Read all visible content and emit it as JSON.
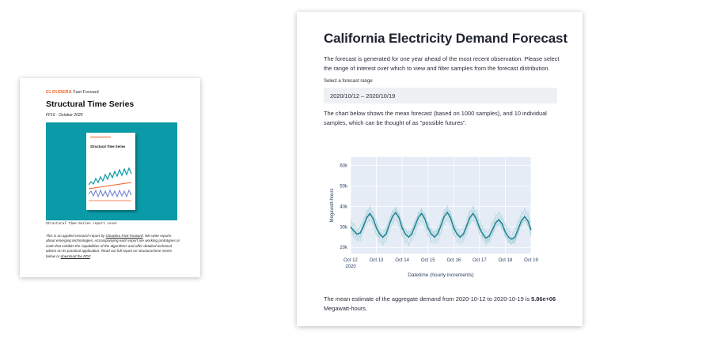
{
  "report": {
    "brand_name": "CLOUDERA",
    "brand_sub": "Fast Forward",
    "title": "Structural Time Series",
    "subtitle": "FF16 · October 2020",
    "cover_title": "Structural Time Series",
    "cover_caption": "Structural Time-Series report cover",
    "intro_text_1": "This is an applied research report by ",
    "intro_link": "Cloudera Fast Forward",
    "intro_text_2": ". We write reports about emerging technologies. Accompanying each report are working prototypes or code that exhibits the capabilities of the algorithms and offer detailed technical advice on its practical application. Read our full report on structural time series below or ",
    "download_link": "download the PDF",
    "intro_text_3": "."
  },
  "app": {
    "title": "California Electricity Demand Forecast",
    "description": "The forecast is generated for one year ahead of the most recent observation. Please select the range of interest over which to view and filter samples from the forecast distribution.",
    "range_label": "Select a forecast range",
    "range_value": "2020/10/12 – 2020/10/19",
    "chart_description": "The chart below shows the mean forecast (based on 1000 samples), and 10 individual samples, which can be thought of as \"possible futures\".",
    "mean_text_prefix": "The mean estimate of the aggregate demand from 2020-10-12 to 2020-10-19 is ",
    "mean_value": "5.86e+06",
    "mean_text_suffix": " Megawatt-hours."
  },
  "colors": {
    "accent_orange": "#f25c20",
    "cover_teal": "#0b9aa7",
    "mean_line": "#1d7e8c",
    "samples": "#9fcfd8",
    "plot_bg": "#e5ecf6",
    "axis_text": "#2a3f5f"
  },
  "chart_data": {
    "type": "line",
    "xlabel": "Datetime (hourly increments)",
    "ylabel": "Megawatt-hours",
    "x_ticks": [
      "Oct 12",
      "Oct 13",
      "Oct 14",
      "Oct 15",
      "Oct 16",
      "Oct 17",
      "Oct 18",
      "Oct 19"
    ],
    "x_tick_sub": "2020",
    "y_ticks": [
      "20k",
      "30k",
      "40k",
      "50k",
      "60k"
    ],
    "y_tick_values": [
      20000,
      30000,
      40000,
      50000,
      60000
    ],
    "ylim": [
      17000,
      64000
    ],
    "series": [
      {
        "name": "mean",
        "x_days": [
          0,
          0.125,
          0.25,
          0.375,
          0.5,
          0.625,
          0.75,
          0.875,
          1,
          1.125,
          1.25,
          1.375,
          1.5,
          1.625,
          1.75,
          1.875,
          2,
          2.125,
          2.25,
          2.375,
          2.5,
          2.625,
          2.75,
          2.875,
          3,
          3.125,
          3.25,
          3.375,
          3.5,
          3.625,
          3.75,
          3.875,
          4,
          4.125,
          4.25,
          4.375,
          4.5,
          4.625,
          4.75,
          4.875,
          5,
          5.125,
          5.25,
          5.375,
          5.5,
          5.625,
          5.75,
          5.875,
          6,
          6.125,
          6.25,
          6.375,
          6.5,
          6.625,
          6.75,
          6.875,
          7
        ],
        "values": [
          30000,
          28000,
          26500,
          27000,
          30500,
          34500,
          36500,
          34000,
          29500,
          26500,
          25000,
          26500,
          31000,
          35000,
          37000,
          34500,
          29500,
          26500,
          25000,
          26500,
          30500,
          34500,
          36500,
          34000,
          29500,
          26500,
          25000,
          26500,
          30500,
          35000,
          37000,
          34500,
          29500,
          26500,
          25000,
          26500,
          30500,
          34500,
          36500,
          34000,
          29500,
          26500,
          24500,
          25500,
          28500,
          32000,
          33500,
          31500,
          27500,
          25000,
          24000,
          25000,
          29000,
          33000,
          35000,
          33000,
          28500
        ]
      }
    ],
    "sample_count": 10,
    "grid": true
  }
}
